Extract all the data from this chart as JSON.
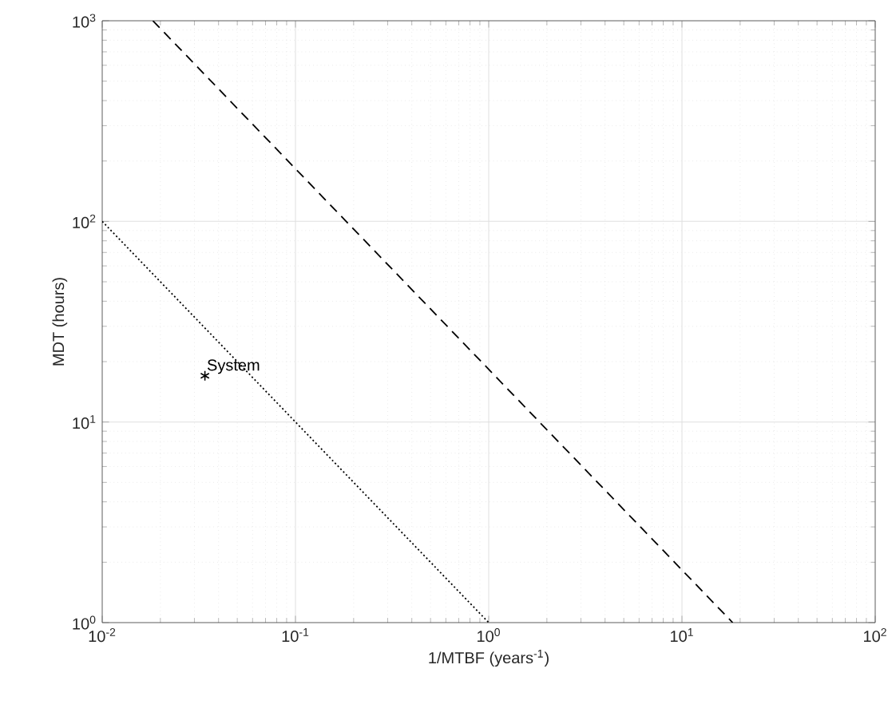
{
  "chart_data": {
    "type": "line",
    "xlabel": "1/MTBF (years$^{-1}$)",
    "ylabel": "MDT (hours)",
    "log": "xy",
    "xlim": [
      0.01,
      100
    ],
    "ylim": [
      1,
      1000
    ],
    "xticks": [
      {
        "value": 0.01,
        "label": "10$^{-2}$"
      },
      {
        "value": 0.1,
        "label": "10$^{-1}$"
      },
      {
        "value": 1,
        "label": "10$^{0}$"
      },
      {
        "value": 10,
        "label": "10$^{1}$"
      },
      {
        "value": 100,
        "label": "10$^{2}$"
      }
    ],
    "yticks": [
      {
        "value": 1,
        "label": "10$^{0}$"
      },
      {
        "value": 10,
        "label": "10$^{1}$"
      },
      {
        "value": 100,
        "label": "10$^{2}$"
      },
      {
        "value": 1000,
        "label": "10$^{3}$"
      }
    ],
    "grid": true,
    "series": [
      {
        "color": "#000000",
        "line_style": "dashed",
        "marker": "none",
        "x": [
          0.0183,
          18.3
        ],
        "values": [
          1000,
          1
        ]
      },
      {
        "color": "#000000",
        "line_style": "dotted",
        "marker": "none",
        "x": [
          0.01,
          1
        ],
        "values": [
          100,
          1
        ]
      },
      {
        "type": "scatter",
        "color": "#000000",
        "marker": "cross",
        "x": [
          0.034
        ],
        "values": [
          17
        ]
      }
    ],
    "annotations": [
      {
        "text": "System",
        "x": 0.034,
        "y": 17
      }
    ]
  }
}
